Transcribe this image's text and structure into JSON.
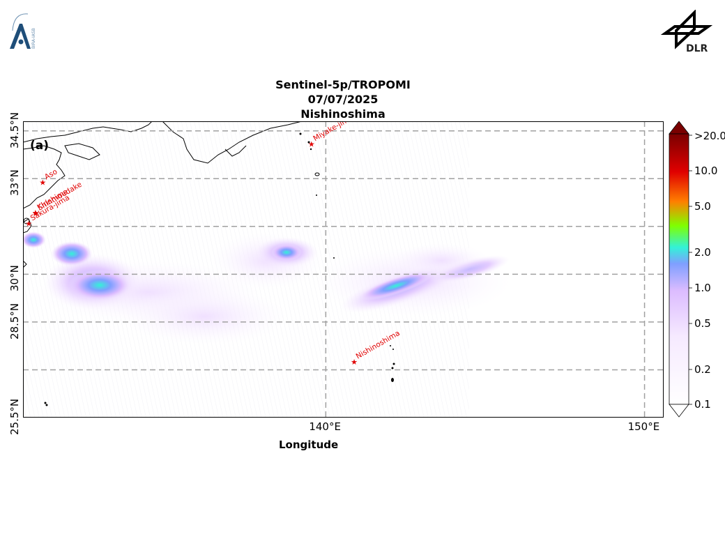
{
  "header": {
    "logo_left": {
      "name": "BIRA-IASB",
      "text": "BIRA-IASB"
    },
    "logo_right": {
      "name": "DLR",
      "text": "DLR"
    }
  },
  "title": {
    "line1": "Sentinel-5p/TROPOMI",
    "line2": "07/07/2025",
    "line3": "Nishinoshima"
  },
  "map": {
    "panel_label": "(a)",
    "xlabel": "Longitude",
    "lon_range": [
      130.5,
      150.6
    ],
    "lat_range": [
      25.5,
      34.8
    ],
    "xticks": [
      {
        "label": "140°E",
        "value": 140
      },
      {
        "label": "150°E",
        "value": 150
      }
    ],
    "yticks": [
      {
        "label": "25.5°N",
        "value": 25.5
      },
      {
        "label": "28.5°N",
        "value": 28.5
      },
      {
        "label": "30°N",
        "value": 30
      },
      {
        "label": "33°N",
        "value": 33
      },
      {
        "label": "34.5°N",
        "value": 34.5
      }
    ],
    "volcanoes": [
      {
        "name": "Miyake-jima",
        "lon": 139.53,
        "lat": 34.09
      },
      {
        "name": "Aso",
        "lon": 131.1,
        "lat": 32.88
      },
      {
        "name": "Shinmoedake",
        "lon": 130.88,
        "lat": 31.91
      },
      {
        "name": "Sakura-jima",
        "lon": 130.66,
        "lat": 31.59
      },
      {
        "name": "Kirishima",
        "lon": 130.87,
        "lat": 31.93
      },
      {
        "name": "Nishinoshima",
        "lon": 140.87,
        "lat": 27.25
      }
    ],
    "colors": {
      "marker": "#e00000",
      "grid": "#a0a0a0",
      "coast": "#000000"
    }
  },
  "colorbar": {
    "scale": "log",
    "ticks": [
      ">20.0",
      "10.0",
      "5.0",
      "2.0",
      "1.0",
      "0.5",
      "0.2",
      "0.1"
    ],
    "colors": [
      "#7a0000",
      "#e00000",
      "#ff7f00",
      "#7fff00",
      "#33f2d8",
      "#7f9fff",
      "#dcbcff",
      "#ffffff"
    ]
  }
}
